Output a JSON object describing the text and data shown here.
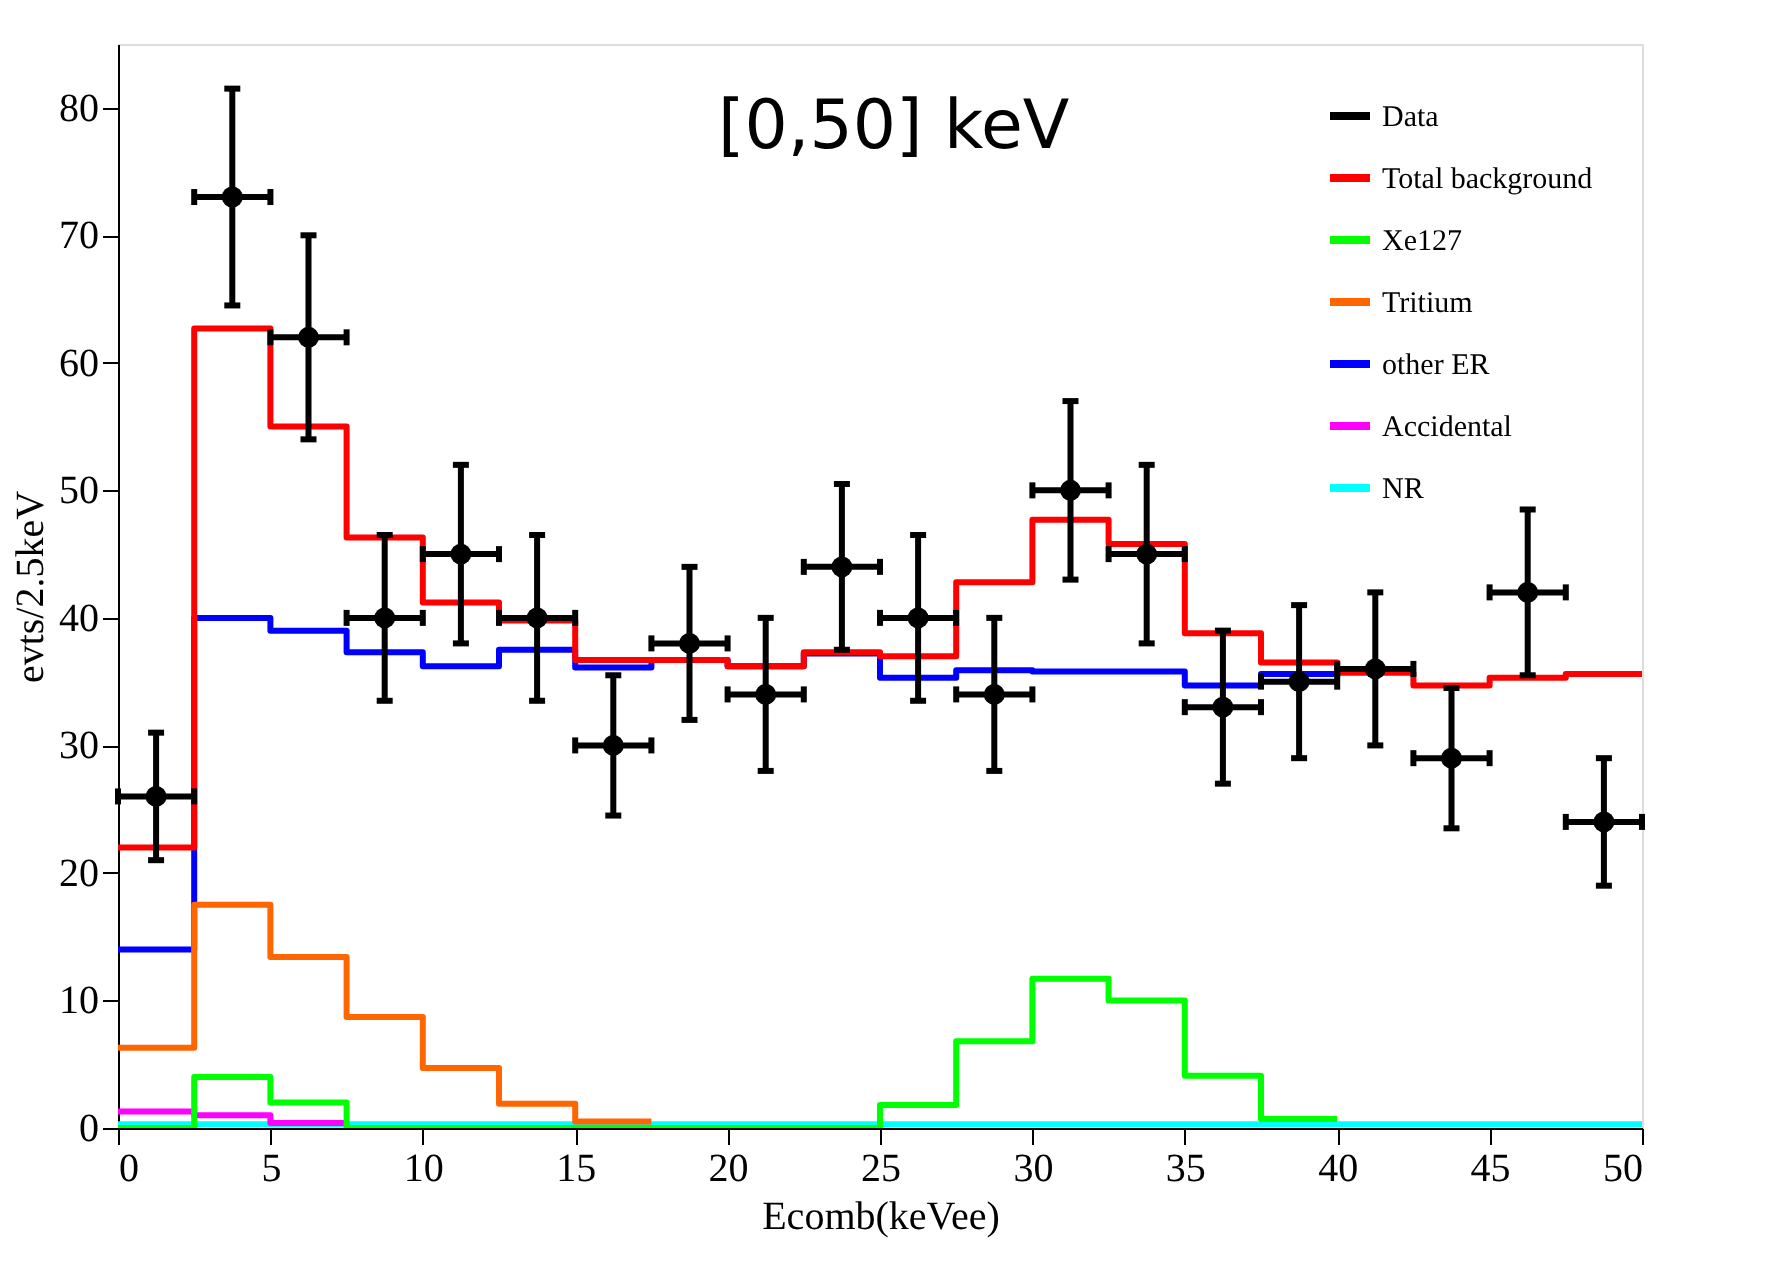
{
  "chart_data": {
    "type": "step",
    "xlabel": "Ecomb(keVee)",
    "ylabel": "evts/2.5keV",
    "annotations": [
      "[0,50] keV"
    ],
    "xlim": [
      0,
      50
    ],
    "xticks": [
      0,
      5,
      10,
      15,
      20,
      25,
      30,
      35,
      40,
      45,
      50
    ],
    "ylim": [
      0,
      85
    ],
    "yticks": [
      0,
      10,
      20,
      30,
      40,
      50,
      60,
      70,
      80
    ],
    "grid": false,
    "legend": "top right",
    "line_style": "solid",
    "series": [
      {
        "name": "Data",
        "type": "scatter",
        "marker": "circle",
        "color": "#000000",
        "x": [
          1.25,
          3.75,
          6.25,
          8.75,
          11.25,
          13.75,
          16.25,
          18.75,
          21.25,
          23.75,
          26.25,
          28.75,
          31.25,
          33.75,
          36.25,
          38.75,
          41.25,
          43.75,
          46.25,
          48.75
        ],
        "values": [
          26,
          73,
          62,
          40,
          45,
          40,
          30,
          38,
          34,
          44,
          40,
          34,
          50,
          45,
          33,
          35,
          36,
          29,
          42,
          24
        ],
        "errors": [
          5,
          8.5,
          8,
          6.5,
          7,
          6.5,
          5.5,
          6,
          6,
          6.5,
          6.5,
          6,
          7,
          7,
          6,
          6,
          6,
          5.5,
          6.5,
          5
        ],
        "xerrors": [
          1.25,
          1.25,
          1.25,
          1.25,
          1.25,
          1.25,
          1.25,
          1.25,
          1.25,
          1.25,
          1.25,
          1.25,
          1.25,
          1.25,
          1.25,
          1.25,
          1.25,
          1.25,
          1.25,
          1.25
        ]
      },
      {
        "name": "Total background",
        "color": "#ff0000",
        "x": [
          0,
          2.5,
          5,
          7.5,
          10,
          12.5,
          15,
          17.5,
          20,
          22.5,
          25,
          27.5,
          30,
          32.5,
          35,
          37.5,
          40,
          42.5,
          45,
          47.5,
          50
        ],
        "values": [
          22,
          62.7,
          55,
          46.3,
          41.2,
          39.8,
          36.7,
          36.7,
          36.2,
          37.3,
          37,
          42.8,
          47.7,
          45.8,
          38.8,
          36.5,
          35.7,
          34.7,
          35.3,
          35.6,
          35.6
        ]
      },
      {
        "name": "Xe127",
        "color": "#00ff00",
        "x": [
          0,
          2.5,
          5,
          7.5,
          10,
          12.5,
          15,
          17.5,
          20,
          22.5,
          25,
          27.5,
          30,
          32.5,
          35,
          37.5,
          40
        ],
        "values": [
          0,
          4,
          2,
          0,
          0,
          0,
          0,
          0,
          0,
          0,
          1.8,
          6.8,
          11.7,
          10,
          4.1,
          0.7,
          0.7
        ]
      },
      {
        "name": "Tritium",
        "color": "#ff6600",
        "x": [
          0,
          2.5,
          5,
          7.5,
          10,
          12.5,
          15,
          17.5
        ],
        "values": [
          6.3,
          17.5,
          13.4,
          8.7,
          4.7,
          1.9,
          0.5,
          0.5
        ]
      },
      {
        "name": "other ER",
        "color": "#0000ff",
        "x": [
          0,
          2.5,
          5,
          7.5,
          10,
          12.5,
          15,
          17.5,
          20,
          22.5,
          25,
          27.5,
          30,
          32.5,
          35,
          37.5,
          40
        ],
        "values": [
          14,
          40,
          39,
          37.3,
          36.2,
          37.5,
          36.1,
          36.7,
          36.2,
          37.2,
          35.3,
          35.9,
          35.8,
          35.8,
          34.7,
          35.6,
          35.6
        ]
      },
      {
        "name": "Accidental",
        "color": "#ff00ff",
        "x": [
          0,
          2.5,
          5,
          7.5
        ],
        "values": [
          1.3,
          1.0,
          0.4,
          0.4
        ]
      },
      {
        "name": "NR",
        "color": "#00ffff",
        "x": [
          0,
          2.5,
          5,
          7.5,
          10,
          12.5,
          15,
          17.5,
          20,
          22.5,
          25,
          27.5,
          30,
          32.5,
          35,
          37.5,
          40,
          42.5,
          45,
          47.5,
          50
        ],
        "values": [
          0.3,
          0.3,
          0.3,
          0.3,
          0.3,
          0.3,
          0.3,
          0.3,
          0.3,
          0.3,
          0.3,
          0.3,
          0.3,
          0.3,
          0.3,
          0.3,
          0.3,
          0.3,
          0.3,
          0.3,
          0.3
        ]
      }
    ]
  }
}
